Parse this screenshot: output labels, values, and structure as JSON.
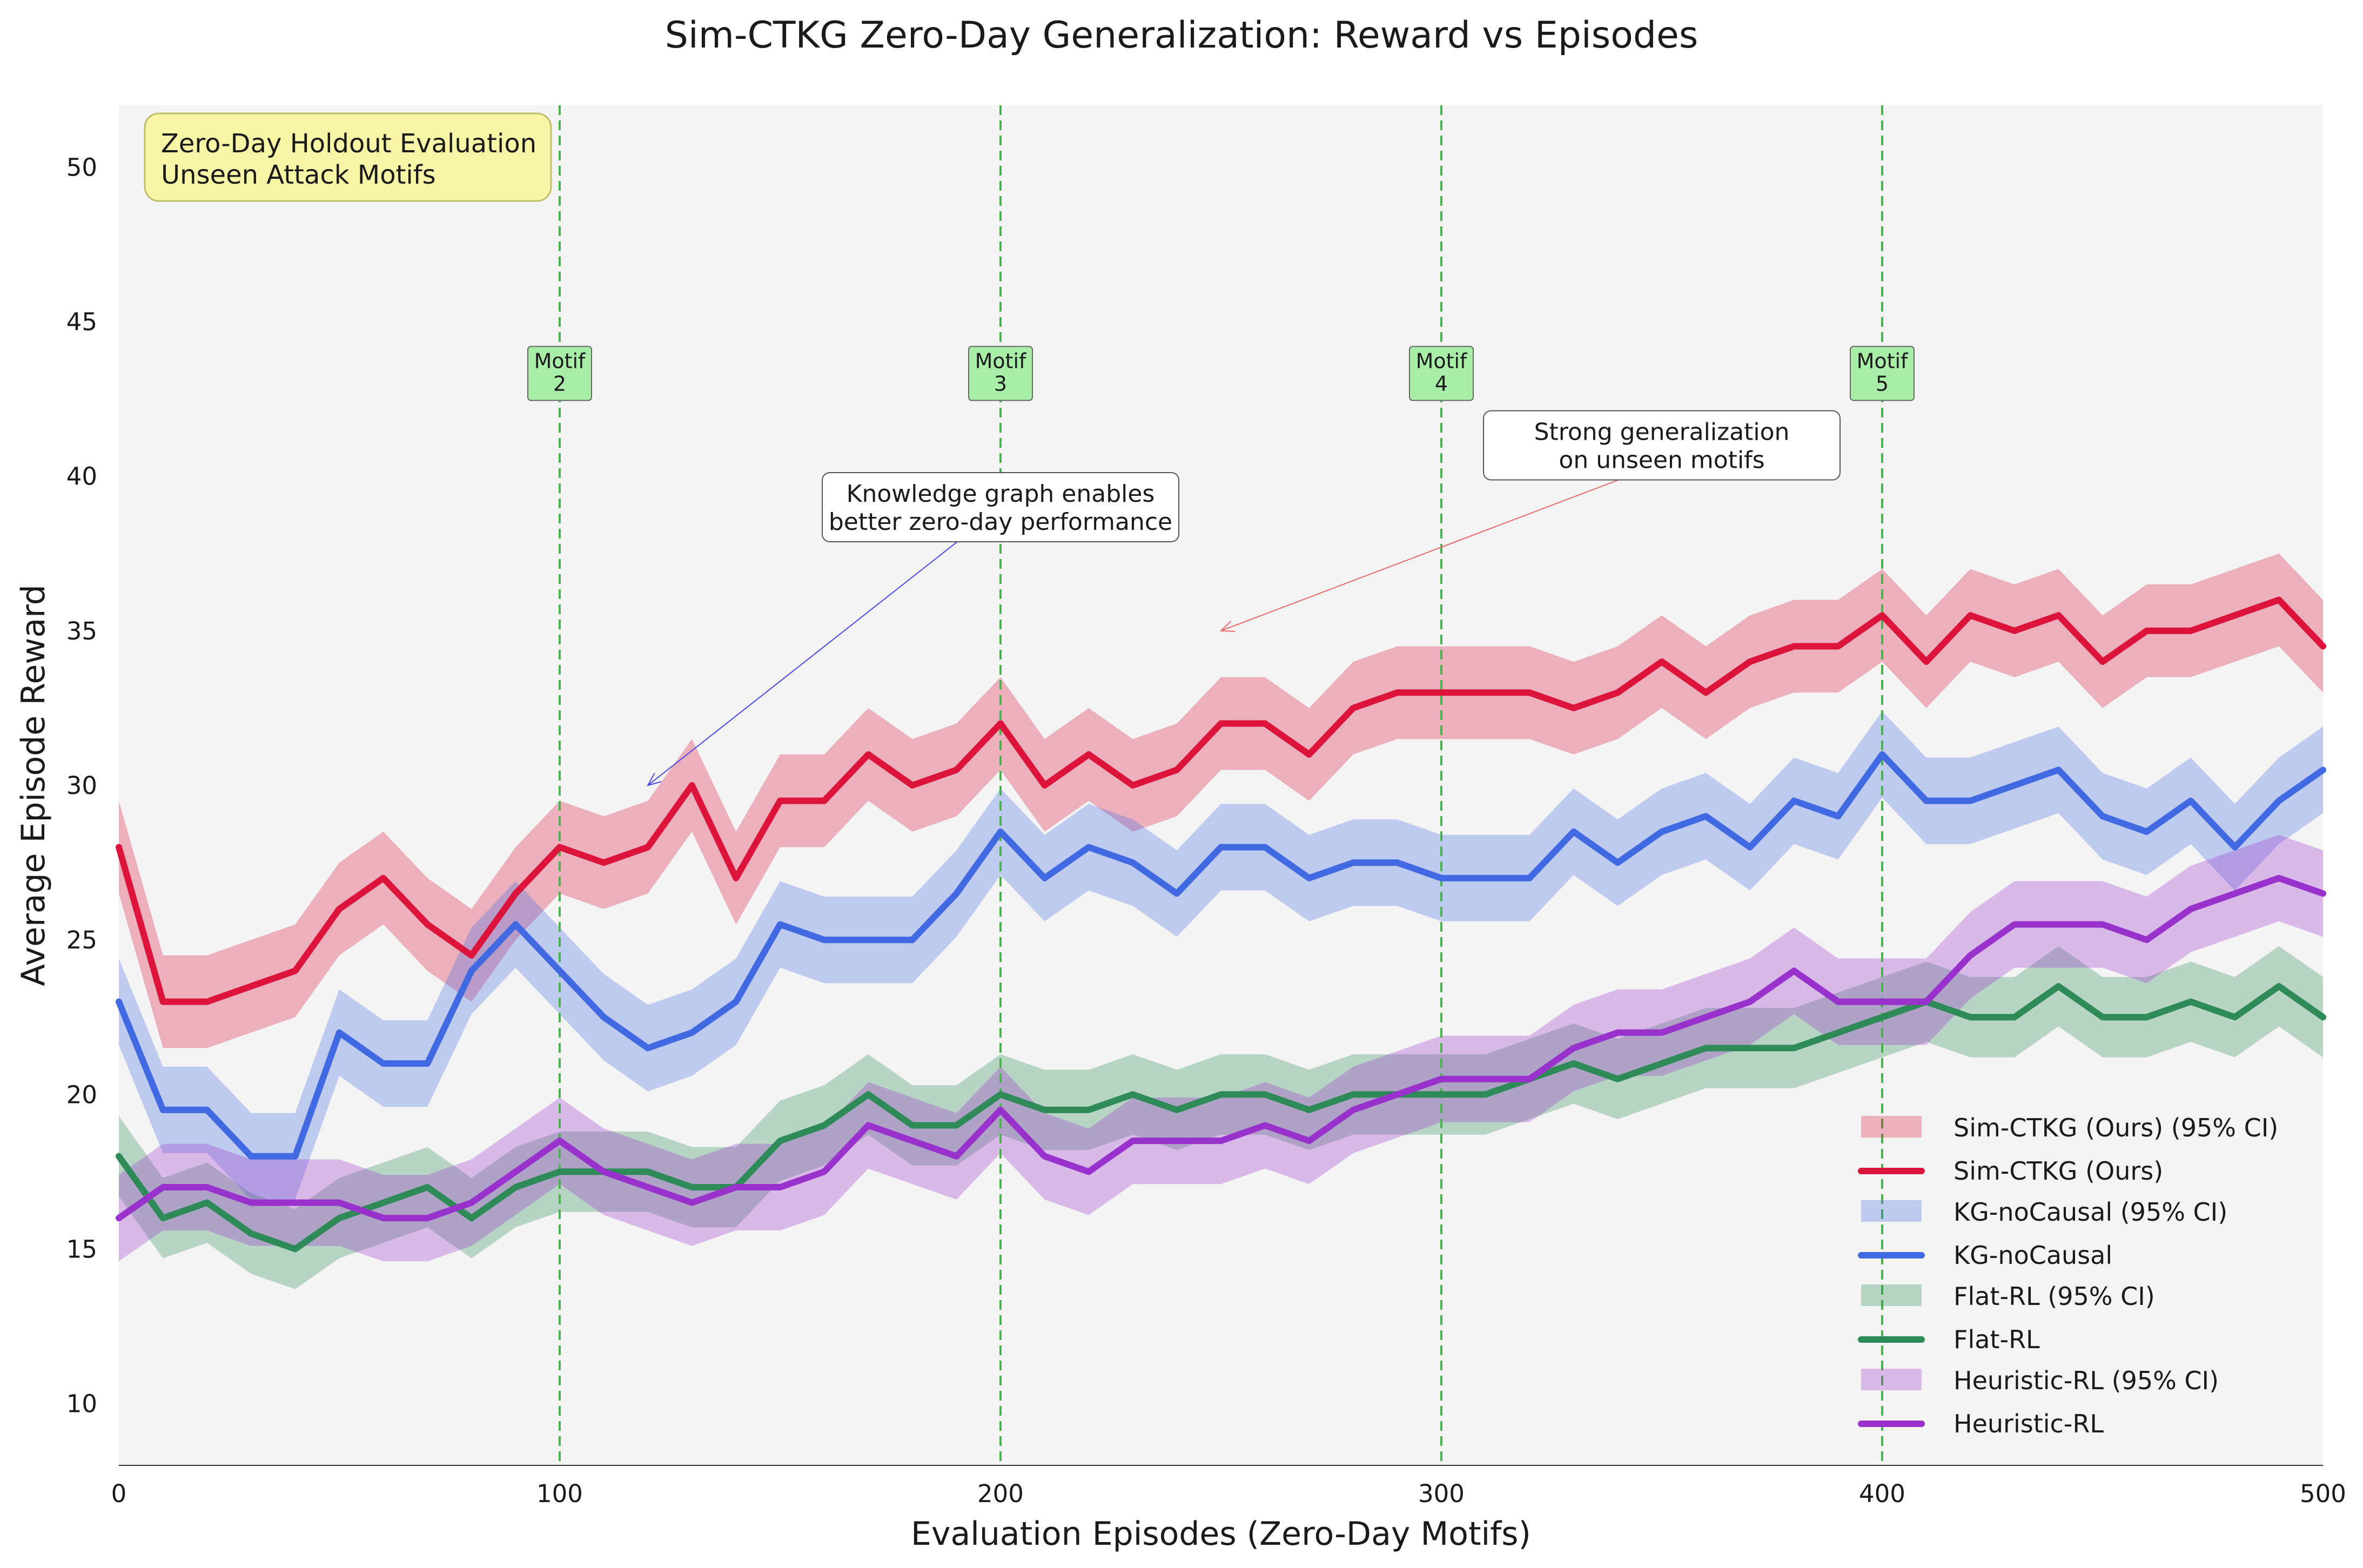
{
  "chart_data": {
    "type": "line",
    "title": "Sim-CTKG Zero-Day Generalization: Reward vs Episodes",
    "xlabel": "Evaluation Episodes (Zero-Day Motifs)",
    "ylabel": "Average Episode Reward",
    "xlim": [
      0,
      500
    ],
    "ylim": [
      8,
      52
    ],
    "xticks": [
      0,
      100,
      200,
      300,
      400,
      500
    ],
    "yticks": [
      10,
      15,
      20,
      25,
      30,
      35,
      40,
      45,
      50
    ],
    "grid": false,
    "legend_position": "bottom-right",
    "background": "#f4f4f4",
    "info_box": [
      "Zero-Day Holdout Evaluation",
      "Unseen Attack Motifs"
    ],
    "motif_markers": [
      {
        "x": 100,
        "lines": [
          "Motif",
          "2"
        ]
      },
      {
        "x": 200,
        "lines": [
          "Motif",
          "3"
        ]
      },
      {
        "x": 300,
        "lines": [
          "Motif",
          "4"
        ]
      },
      {
        "x": 400,
        "lines": [
          "Motif",
          "5"
        ]
      }
    ],
    "annotations": [
      {
        "lines": [
          "Knowledge graph enables",
          "better zero-day performance"
        ],
        "text_x": 200,
        "text_y": 39,
        "arrow_x": 120,
        "arrow_y": 30,
        "color": "#4a4ae8"
      },
      {
        "lines": [
          "Strong generalization",
          "on unseen motifs"
        ],
        "text_x": 350,
        "text_y": 41,
        "arrow_x": 250,
        "arrow_y": 35,
        "color": "#e86a6a"
      }
    ],
    "series": [
      {
        "name": "Sim-CTKG (Ours)",
        "ci_label": "Sim-CTKG (Ours) (95% CI)",
        "color": "#dc143c",
        "x": [
          0,
          10,
          20,
          30,
          40,
          50,
          60,
          70,
          80,
          90,
          100,
          110,
          120,
          130,
          140,
          150,
          160,
          170,
          180,
          190,
          200,
          210,
          220,
          230,
          240,
          250,
          260,
          270,
          280,
          290,
          300,
          310,
          320,
          330,
          340,
          350,
          360,
          370,
          380,
          390,
          400,
          410,
          420,
          430,
          440,
          450,
          460,
          470,
          480,
          490,
          500
        ],
        "y": [
          28,
          23,
          23,
          23.5,
          24,
          26,
          27,
          25.5,
          24.5,
          26.5,
          28,
          27.5,
          28,
          30,
          27,
          29.5,
          29.5,
          31,
          30,
          30.5,
          32,
          30,
          31,
          30,
          30.5,
          32,
          32,
          31,
          32.5,
          33,
          33,
          33,
          33,
          32.5,
          33,
          34,
          33,
          34,
          34.5,
          34.5,
          35.5,
          34,
          35.5,
          35,
          35.5,
          34,
          35,
          35,
          35.5,
          36,
          34.5
        ],
        "ci_half_width": 1.5
      },
      {
        "name": "KG-noCausal",
        "ci_label": "KG-noCausal (95% CI)",
        "color": "#4169e1",
        "x": [
          0,
          10,
          20,
          30,
          40,
          50,
          60,
          70,
          80,
          90,
          100,
          110,
          120,
          130,
          140,
          150,
          160,
          170,
          180,
          190,
          200,
          210,
          220,
          230,
          240,
          250,
          260,
          270,
          280,
          290,
          300,
          310,
          320,
          330,
          340,
          350,
          360,
          370,
          380,
          390,
          400,
          410,
          420,
          430,
          440,
          450,
          460,
          470,
          480,
          490,
          500
        ],
        "y": [
          23,
          19.5,
          19.5,
          18,
          18,
          22,
          21,
          21,
          24,
          25.5,
          24,
          22.5,
          21.5,
          22,
          23,
          25.5,
          25,
          25,
          25,
          26.5,
          28.5,
          27,
          28,
          27.5,
          26.5,
          28,
          28,
          27,
          27.5,
          27.5,
          27,
          27,
          27,
          28.5,
          27.5,
          28.5,
          29,
          28,
          29.5,
          29,
          31,
          29.5,
          29.5,
          30,
          30.5,
          29,
          28.5,
          29.5,
          28,
          29.5,
          30.5
        ],
        "ci_half_width": 1.4
      },
      {
        "name": "Flat-RL",
        "ci_label": "Flat-RL (95% CI)",
        "color": "#2e8b57",
        "x": [
          0,
          10,
          20,
          30,
          40,
          50,
          60,
          70,
          80,
          90,
          100,
          110,
          120,
          130,
          140,
          150,
          160,
          170,
          180,
          190,
          200,
          210,
          220,
          230,
          240,
          250,
          260,
          270,
          280,
          290,
          300,
          310,
          320,
          330,
          340,
          350,
          360,
          370,
          380,
          390,
          400,
          410,
          420,
          430,
          440,
          450,
          460,
          470,
          480,
          490,
          500
        ],
        "y": [
          18,
          16,
          16.5,
          15.5,
          15,
          16,
          16.5,
          17,
          16,
          17,
          17.5,
          17.5,
          17.5,
          17,
          17,
          18.5,
          19,
          20,
          19,
          19,
          20,
          19.5,
          19.5,
          20,
          19.5,
          20,
          20,
          19.5,
          20,
          20,
          20,
          20,
          20.5,
          21,
          20.5,
          21,
          21.5,
          21.5,
          21.5,
          22,
          22.5,
          23,
          22.5,
          22.5,
          23.5,
          22.5,
          22.5,
          23,
          22.5,
          23.5,
          22.5
        ],
        "ci_half_width": 1.3
      },
      {
        "name": "Heuristic-RL",
        "ci_label": "Heuristic-RL (95% CI)",
        "color": "#9932cc",
        "x": [
          0,
          10,
          20,
          30,
          40,
          50,
          60,
          70,
          80,
          90,
          100,
          110,
          120,
          130,
          140,
          150,
          160,
          170,
          180,
          190,
          200,
          210,
          220,
          230,
          240,
          250,
          260,
          270,
          280,
          290,
          300,
          310,
          320,
          330,
          340,
          350,
          360,
          370,
          380,
          390,
          400,
          410,
          420,
          430,
          440,
          450,
          460,
          470,
          480,
          490,
          500
        ],
        "y": [
          16,
          17,
          17,
          16.5,
          16.5,
          16.5,
          16,
          16,
          16.5,
          17.5,
          18.5,
          17.5,
          17,
          16.5,
          17,
          17,
          17.5,
          19,
          18.5,
          18,
          19.5,
          18,
          17.5,
          18.5,
          18.5,
          18.5,
          19,
          18.5,
          19.5,
          20,
          20.5,
          20.5,
          20.5,
          21.5,
          22,
          22,
          22.5,
          23,
          24,
          23,
          23,
          23,
          24.5,
          25.5,
          25.5,
          25.5,
          25,
          26,
          26.5,
          27,
          26.5
        ],
        "ci_half_width": 1.4
      }
    ]
  }
}
